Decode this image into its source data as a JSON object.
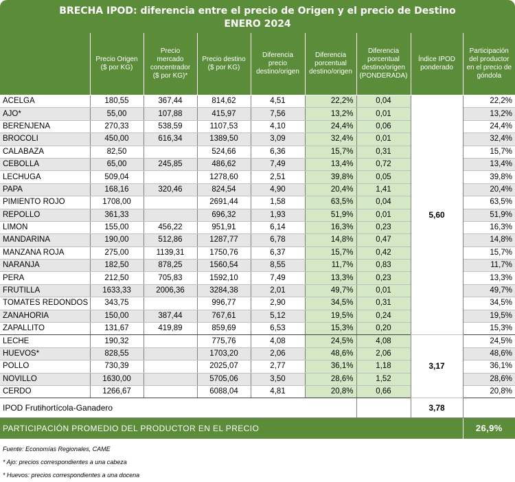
{
  "title": {
    "line1": "BRECHA IPOD: diferencia entre el precio de Origen y el precio de Destino",
    "line2": "ENERO 2024"
  },
  "headers": [
    "",
    "Precio Origen ($ por KG)",
    "Precio mercado concentrador ($ por KG)*",
    "Precio destino ($ por KG)",
    "Diferencia precio destino/origen",
    "Diferencia porcentual destino/origen",
    "Diferencia porcentual destino/origen (PONDERADA)",
    "Índice IPOD ponderado",
    "Participación del productor en el precio de góndola"
  ],
  "group1": {
    "ipod": "5,60",
    "rows": [
      {
        "producto": "ACELGA",
        "origen": "180,55",
        "mercado": "367,44",
        "destino": "814,62",
        "dif": "4,51",
        "dif_pct": "22,2%",
        "dif_pond": "0,04",
        "part": "22,2%"
      },
      {
        "producto": "AJO*",
        "origen": "55,00",
        "mercado": "107,88",
        "destino": "415,97",
        "dif": "7,56",
        "dif_pct": "13,2%",
        "dif_pond": "0,01",
        "part": "13,2%"
      },
      {
        "producto": "BERENJENA",
        "origen": "270,33",
        "mercado": "538,59",
        "destino": "1107,53",
        "dif": "4,10",
        "dif_pct": "24,4%",
        "dif_pond": "0,06",
        "part": "24,4%"
      },
      {
        "producto": "BROCOLI",
        "origen": "450,00",
        "mercado": "616,34",
        "destino": "1389,50",
        "dif": "3,09",
        "dif_pct": "32,4%",
        "dif_pond": "0,01",
        "part": "32,4%"
      },
      {
        "producto": "CALABAZA",
        "origen": "82,50",
        "mercado": "",
        "destino": "524,66",
        "dif": "6,36",
        "dif_pct": "15,7%",
        "dif_pond": "0,31",
        "part": "15,7%"
      },
      {
        "producto": "CEBOLLA",
        "origen": "65,00",
        "mercado": "245,85",
        "destino": "486,62",
        "dif": "7,49",
        "dif_pct": "13,4%",
        "dif_pond": "0,72",
        "part": "13,4%"
      },
      {
        "producto": "LECHUGA",
        "origen": "509,04",
        "mercado": "",
        "destino": "1278,60",
        "dif": "2,51",
        "dif_pct": "39,8%",
        "dif_pond": "0,05",
        "part": "39,8%"
      },
      {
        "producto": "PAPA",
        "origen": "168,16",
        "mercado": "320,46",
        "destino": "824,54",
        "dif": "4,90",
        "dif_pct": "20,4%",
        "dif_pond": "1,41",
        "part": "20,4%"
      },
      {
        "producto": "PIMIENTO ROJO",
        "origen": "1708,00",
        "mercado": "",
        "destino": "2691,44",
        "dif": "1,58",
        "dif_pct": "63,5%",
        "dif_pond": "0,04",
        "part": "63,5%"
      },
      {
        "producto": "REPOLLO",
        "origen": "361,33",
        "mercado": "",
        "destino": "696,32",
        "dif": "1,93",
        "dif_pct": "51,9%",
        "dif_pond": "0,01",
        "part": "51,9%"
      },
      {
        "producto": "LIMON",
        "origen": "155,00",
        "mercado": "456,22",
        "destino": "951,91",
        "dif": "6,14",
        "dif_pct": "16,3%",
        "dif_pond": "0,23",
        "part": "16,3%"
      },
      {
        "producto": "MANDARINA",
        "origen": "190,00",
        "mercado": "512,86",
        "destino": "1287,77",
        "dif": "6,78",
        "dif_pct": "14,8%",
        "dif_pond": "0,47",
        "part": "14,8%"
      },
      {
        "producto": "MANZANA ROJA",
        "origen": "275,00",
        "mercado": "1139,31",
        "destino": "1750,76",
        "dif": "6,37",
        "dif_pct": "15,7%",
        "dif_pond": "0,42",
        "part": "15,7%"
      },
      {
        "producto": "NARANJA",
        "origen": "182,50",
        "mercado": "878,25",
        "destino": "1560,54",
        "dif": "8,55",
        "dif_pct": "11,7%",
        "dif_pond": "0,83",
        "part": "11,7%"
      },
      {
        "producto": "PERA",
        "origen": "212,50",
        "mercado": "705,83",
        "destino": "1592,10",
        "dif": "7,49",
        "dif_pct": "13,3%",
        "dif_pond": "0,23",
        "part": "13,3%"
      },
      {
        "producto": "FRUTILLA",
        "origen": "1633,33",
        "mercado": "2006,36",
        "destino": "3284,38",
        "dif": "2,01",
        "dif_pct": "49,7%",
        "dif_pond": "0,01",
        "part": "49,7%"
      },
      {
        "producto": "TOMATES REDONDOS",
        "origen": "343,75",
        "mercado": "",
        "destino": "996,77",
        "dif": "2,90",
        "dif_pct": "34,5%",
        "dif_pond": "0,31",
        "part": "34,5%"
      },
      {
        "producto": "ZANAHORIA",
        "origen": "150,00",
        "mercado": "387,44",
        "destino": "767,61",
        "dif": "5,12",
        "dif_pct": "19,5%",
        "dif_pond": "0,24",
        "part": "19,5%"
      },
      {
        "producto": "ZAPALLITO",
        "origen": "131,67",
        "mercado": "419,89",
        "destino": "859,69",
        "dif": "6,53",
        "dif_pct": "15,3%",
        "dif_pond": "0,20",
        "part": "15,3%"
      }
    ]
  },
  "group2": {
    "ipod": "3,17",
    "rows": [
      {
        "producto": "LECHE",
        "origen": "190,32",
        "mercado": "",
        "destino": "775,76",
        "dif": "4,08",
        "dif_pct": "24,5%",
        "dif_pond": "4,08",
        "part": "24,5%"
      },
      {
        "producto": "HUEVOS*",
        "origen": "828,55",
        "mercado": "",
        "destino": "1703,20",
        "dif": "2,06",
        "dif_pct": "48,6%",
        "dif_pond": "2,06",
        "part": "48,6%"
      },
      {
        "producto": "POLLO",
        "origen": "730,39",
        "mercado": "",
        "destino": "2025,07",
        "dif": "2,77",
        "dif_pct": "36,1%",
        "dif_pond": "1,18",
        "part": "36,1%"
      },
      {
        "producto": "NOVILLO",
        "origen": "1630,00",
        "mercado": "",
        "destino": "5705,06",
        "dif": "3,50",
        "dif_pct": "28,6%",
        "dif_pond": "1,52",
        "part": "28,6%"
      },
      {
        "producto": "CERDO",
        "origen": "1266,67",
        "mercado": "",
        "destino": "6088,04",
        "dif": "4,81",
        "dif_pct": "20,8%",
        "dif_pond": "0,66",
        "part": "20,8%"
      }
    ]
  },
  "total": {
    "label": "IPOD Frutihortícola-Ganadero",
    "value": "3,78"
  },
  "summary": {
    "label": "PARTICIPACIÓN PROMEDIO DEL PRODUCTOR EN EL PRECIO",
    "value": "26,9%"
  },
  "notes": [
    "Fuente: Economías Regionales, CAME",
    "* Ajo: precios correspondientes a una cabeza",
    "* Huevos: precios correspondientes a una docena"
  ],
  "colors": {
    "header_green": "#5b8c3a",
    "pond_col_green": "#d4e8c5",
    "zebra_gray": "#e6e6e6"
  }
}
